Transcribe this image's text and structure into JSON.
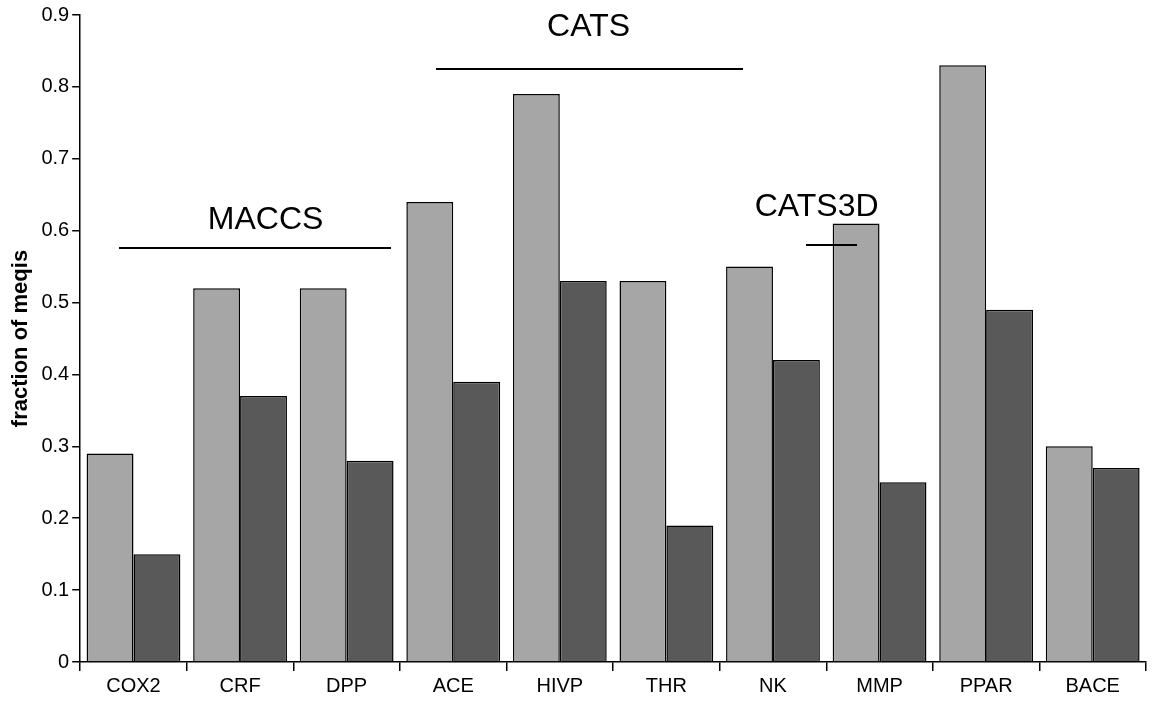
{
  "chart_data": {
    "type": "bar",
    "ylabel": "fraction of meqis",
    "categories": [
      "COX2",
      "CRF",
      "DPP",
      "ACE",
      "HIVP",
      "THR",
      "NK",
      "MMP",
      "PPAR",
      "BACE"
    ],
    "series": [
      {
        "color": "#a6a6a6",
        "values": [
          0.29,
          0.52,
          0.52,
          0.64,
          0.79,
          0.53,
          0.55,
          0.61,
          0.83,
          0.3
        ]
      },
      {
        "color": "#595959",
        "values": [
          0.15,
          0.37,
          0.28,
          0.39,
          0.53,
          0.19,
          0.42,
          0.25,
          0.49,
          0.27
        ]
      }
    ],
    "ylim": [
      0,
      0.9
    ],
    "yticks": [
      0,
      0.1,
      0.2,
      0.3,
      0.4,
      0.5,
      0.6,
      0.7,
      0.8,
      0.9
    ],
    "grid": false,
    "legend": false,
    "annotations": [
      "MACCS",
      "CATS",
      "CATS3D"
    ]
  }
}
